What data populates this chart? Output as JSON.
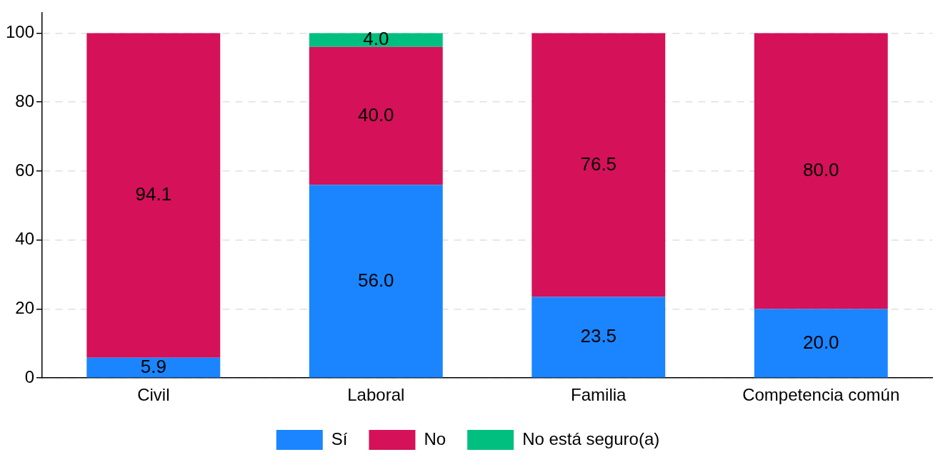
{
  "chart_data": {
    "type": "bar",
    "stacked": true,
    "categories": [
      "Civil",
      "Laboral",
      "Familia",
      "Competencia común"
    ],
    "series": [
      {
        "name": "Sí",
        "color": "#1a85ff",
        "values": [
          5.9,
          56.0,
          23.5,
          20.0
        ],
        "value_labels": [
          "5.9",
          "56.0",
          "23.5",
          "20.0"
        ]
      },
      {
        "name": "No",
        "color": "#d41159",
        "values": [
          94.1,
          40.0,
          76.5,
          80.0
        ],
        "value_labels": [
          "94.1",
          "40.0",
          "76.5",
          "80.0"
        ]
      },
      {
        "name": "No está seguro(a)",
        "color": "#00bf7f",
        "values": [
          null,
          4.0,
          null,
          null
        ],
        "value_labels": [
          null,
          "4.0",
          null,
          null
        ]
      }
    ],
    "ylim": [
      0,
      106
    ],
    "yticks": [
      0,
      20,
      40,
      60,
      80,
      100
    ],
    "grid": "y",
    "legend": "bottom"
  }
}
